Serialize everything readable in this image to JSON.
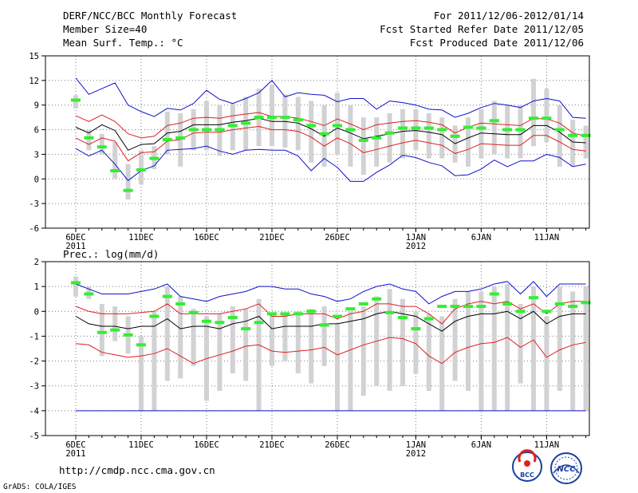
{
  "header": {
    "title": "DERF/NCC/BCC Monthly Forecast",
    "member_size": "Member Size=40",
    "variable": "Mean Surf. Temp.: °C",
    "forecast_range": "For 2011/12/06-2012/01/14",
    "fcst_started": "Fcst Started Refer Date 2011/12/05",
    "fcst_produced": "Fcst Produced Date 2011/12/06"
  },
  "precip_label": "Prec.: log(mm/d)",
  "footer": {
    "url": "http://cmdp.ncc.cma.gov.cn",
    "grads": "GrADS: COLA/IGES",
    "logo_bcc": "BCC",
    "logo_ncc": "NCC"
  },
  "colors": {
    "grid": "#7a7a7a",
    "bar": "#d2d2d4",
    "green": "#33ee33",
    "mean": "#000000",
    "std": "#dd2020",
    "extreme": "#1010cc"
  },
  "chart_data": [
    {
      "type": "line",
      "title": "Mean Surf. Temp.: °C",
      "ylim": [
        -6,
        15
      ],
      "yticks": [
        "15",
        "12",
        "9",
        "6",
        "3",
        "0",
        "-3",
        "-6"
      ],
      "ytick_values": [
        15,
        12,
        9,
        6,
        3,
        0,
        -3,
        -6
      ],
      "x_days": 40,
      "xticks": [
        {
          "day": 0,
          "label": "6DEC",
          "sub": "2011"
        },
        {
          "day": 5,
          "label": "11DEC",
          "sub": ""
        },
        {
          "day": 10,
          "label": "16DEC",
          "sub": ""
        },
        {
          "day": 15,
          "label": "21DEC",
          "sub": ""
        },
        {
          "day": 20,
          "label": "26DEC",
          "sub": ""
        },
        {
          "day": 26,
          "label": "1JAN",
          "sub": "2012"
        },
        {
          "day": 31,
          "label": "6JAN",
          "sub": ""
        },
        {
          "day": 36,
          "label": "11JAN",
          "sub": ""
        }
      ],
      "series": [
        {
          "name": "ensemble max",
          "color": "extreme",
          "values": [
            12.3,
            10.3,
            11.0,
            11.7,
            9.0,
            8.2,
            7.6,
            8.6,
            8.4,
            9.2,
            10.8,
            9.7,
            9.2,
            9.8,
            10.5,
            12.0,
            10.0,
            10.5,
            10.3,
            10.2,
            9.4,
            9.8,
            9.8,
            8.5,
            9.5,
            9.3,
            9.0,
            8.5,
            8.4,
            7.5,
            8.0,
            8.7,
            9.2,
            9.0,
            8.7,
            9.5,
            9.8,
            9.5,
            7.5,
            7.4
          ]
        },
        {
          "name": "mean + std",
          "color": "std",
          "values": [
            7.7,
            7.0,
            7.8,
            7.0,
            5.5,
            5.0,
            5.2,
            6.5,
            6.8,
            7.4,
            7.5,
            7.4,
            7.7,
            7.9,
            8.1,
            7.6,
            7.6,
            7.4,
            7.0,
            6.5,
            7.3,
            6.7,
            6.0,
            6.6,
            6.8,
            7.0,
            7.1,
            6.9,
            6.6,
            5.6,
            6.3,
            6.8,
            6.7,
            6.6,
            6.5,
            7.4,
            7.3,
            6.8,
            5.6,
            5.2
          ]
        },
        {
          "name": "ensemble mean",
          "color": "mean",
          "values": [
            6.3,
            5.6,
            6.6,
            5.9,
            3.5,
            4.2,
            4.3,
            5.6,
            5.8,
            6.6,
            6.6,
            6.6,
            6.9,
            7.1,
            7.4,
            7.0,
            7.0,
            6.8,
            6.1,
            5.2,
            6.2,
            5.6,
            4.9,
            5.2,
            5.5,
            5.8,
            5.9,
            5.7,
            5.4,
            4.3,
            5.0,
            5.6,
            5.5,
            5.4,
            5.4,
            6.5,
            6.5,
            5.7,
            4.5,
            4.4
          ]
        },
        {
          "name": "mean - std",
          "color": "std",
          "values": [
            5.0,
            4.2,
            5.0,
            4.6,
            2.2,
            3.2,
            3.3,
            4.6,
            4.8,
            5.6,
            5.7,
            5.7,
            6.0,
            6.2,
            6.4,
            6.0,
            6.0,
            5.8,
            5.1,
            4.0,
            5.0,
            4.3,
            3.2,
            3.6,
            4.0,
            4.4,
            4.7,
            4.4,
            4.1,
            3.1,
            3.6,
            4.3,
            4.2,
            4.1,
            4.1,
            5.3,
            5.3,
            4.5,
            3.6,
            3.4
          ]
        },
        {
          "name": "ensemble min",
          "color": "extreme",
          "values": [
            3.7,
            2.8,
            3.5,
            1.8,
            -0.2,
            1.0,
            1.6,
            3.5,
            3.6,
            3.7,
            4.0,
            3.4,
            3.0,
            3.5,
            3.6,
            3.5,
            3.5,
            2.8,
            1.0,
            2.5,
            1.4,
            -0.3,
            -0.3,
            0.8,
            1.7,
            2.9,
            2.6,
            2.0,
            1.6,
            0.4,
            0.5,
            1.2,
            2.3,
            1.5,
            2.2,
            2.2,
            3.0,
            2.6,
            1.5,
            1.8
          ]
        }
      ],
      "boxes": [
        [
          8.6,
          10.2
        ],
        [
          3.5,
          6.0
        ],
        [
          3.0,
          5.5
        ],
        [
          0.0,
          4.5
        ],
        [
          -2.5,
          1.8
        ],
        [
          -0.7,
          3.5
        ],
        [
          1.2,
          4.0
        ],
        [
          3.0,
          8.2
        ],
        [
          1.5,
          8.0
        ],
        [
          3.5,
          8.5
        ],
        [
          3.5,
          9.5
        ],
        [
          2.8,
          9.0
        ],
        [
          3.5,
          9.2
        ],
        [
          3.5,
          10.0
        ],
        [
          4.0,
          11.0
        ],
        [
          4.0,
          11.5
        ],
        [
          3.8,
          10.3
        ],
        [
          3.5,
          10.0
        ],
        [
          2.0,
          9.5
        ],
        [
          1.5,
          9.0
        ],
        [
          3.0,
          10.5
        ],
        [
          1.5,
          9.0
        ],
        [
          0.5,
          7.5
        ],
        [
          1.5,
          7.5
        ],
        [
          2.0,
          8.0
        ],
        [
          2.5,
          8.5
        ],
        [
          3.5,
          8.5
        ],
        [
          2.5,
          8.0
        ],
        [
          2.5,
          7.5
        ],
        [
          2.0,
          6.5
        ],
        [
          1.5,
          7.5
        ],
        [
          2.5,
          8.5
        ],
        [
          3.0,
          9.5
        ],
        [
          2.5,
          9.0
        ],
        [
          2.5,
          9.0
        ],
        [
          4.0,
          12.2
        ],
        [
          4.5,
          11.0
        ],
        [
          1.5,
          9.0
        ],
        [
          1.5,
          7.2
        ],
        [
          2.5,
          6.5
        ]
      ],
      "obs": [
        9.6,
        5.0,
        3.9,
        1.0,
        -1.4,
        1.1,
        2.5,
        4.8,
        5.0,
        6.0,
        6.0,
        6.0,
        6.5,
        6.8,
        7.5,
        7.5,
        7.5,
        7.2,
        6.5,
        5.5,
        6.5,
        6.0,
        4.7,
        5.0,
        5.6,
        6.2,
        6.2,
        6.2,
        6.0,
        5.2,
        6.3,
        6.2,
        7.1,
        6.0,
        6.0,
        7.4,
        7.4,
        6.0,
        5.3,
        5.3
      ]
    },
    {
      "type": "line",
      "title": "Prec.: log(mm/d)",
      "ylim": [
        -5,
        2
      ],
      "yticks": [
        "2",
        "1",
        "0",
        "-1",
        "-2",
        "-3",
        "-4",
        "-5"
      ],
      "ytick_values": [
        2,
        1,
        0,
        -1,
        -2,
        -3,
        -4,
        -5
      ],
      "x_days": 40,
      "xticks": [
        {
          "day": 0,
          "label": "6DEC",
          "sub": "2011"
        },
        {
          "day": 5,
          "label": "11DEC",
          "sub": ""
        },
        {
          "day": 10,
          "label": "16DEC",
          "sub": ""
        },
        {
          "day": 15,
          "label": "21DEC",
          "sub": ""
        },
        {
          "day": 20,
          "label": "26DEC",
          "sub": ""
        },
        {
          "day": 26,
          "label": "1JAN",
          "sub": "2012"
        },
        {
          "day": 31,
          "label": "6JAN",
          "sub": ""
        },
        {
          "day": 36,
          "label": "11JAN",
          "sub": ""
        }
      ],
      "series": [
        {
          "name": "ensemble max",
          "color": "extreme",
          "values": [
            1.1,
            0.9,
            0.7,
            0.7,
            0.7,
            0.8,
            0.9,
            1.1,
            0.6,
            0.5,
            0.4,
            0.6,
            0.7,
            0.8,
            1.0,
            1.0,
            0.9,
            0.9,
            0.7,
            0.6,
            0.4,
            0.5,
            0.8,
            1.0,
            1.1,
            0.9,
            0.8,
            0.3,
            0.6,
            0.8,
            0.8,
            0.9,
            1.1,
            1.2,
            0.7,
            1.2,
            0.6,
            1.1,
            1.1,
            1.1
          ]
        },
        {
          "name": "mean + std",
          "color": "std",
          "values": [
            0.2,
            0.0,
            -0.1,
            -0.1,
            -0.1,
            -0.05,
            0.0,
            0.3,
            -0.1,
            -0.1,
            -0.1,
            -0.1,
            0.0,
            0.1,
            0.3,
            -0.2,
            -0.2,
            -0.1,
            -0.1,
            -0.1,
            -0.3,
            -0.1,
            0.0,
            0.3,
            0.3,
            0.2,
            0.2,
            -0.1,
            -0.5,
            0.1,
            0.3,
            0.4,
            0.3,
            0.4,
            0.1,
            0.3,
            -0.1,
            0.3,
            0.4,
            0.4
          ]
        },
        {
          "name": "ensemble mean",
          "color": "mean",
          "values": [
            -0.2,
            -0.5,
            -0.6,
            -0.6,
            -0.7,
            -0.6,
            -0.6,
            -0.3,
            -0.7,
            -0.6,
            -0.6,
            -0.7,
            -0.5,
            -0.4,
            -0.2,
            -0.7,
            -0.6,
            -0.6,
            -0.6,
            -0.5,
            -0.5,
            -0.4,
            -0.3,
            -0.1,
            0.0,
            -0.1,
            -0.2,
            -0.5,
            -0.8,
            -0.4,
            -0.2,
            -0.1,
            -0.1,
            0.0,
            -0.3,
            0.0,
            -0.5,
            -0.2,
            -0.1,
            -0.1
          ]
        },
        {
          "name": "mean - std",
          "color": "std",
          "values": [
            -1.3,
            -1.35,
            -1.65,
            -1.75,
            -1.85,
            -1.8,
            -1.7,
            -1.5,
            -1.8,
            -2.1,
            -1.9,
            -1.75,
            -1.6,
            -1.4,
            -1.35,
            -1.6,
            -1.65,
            -1.6,
            -1.55,
            -1.45,
            -1.75,
            -1.55,
            -1.35,
            -1.2,
            -1.05,
            -1.1,
            -1.3,
            -1.8,
            -2.1,
            -1.65,
            -1.45,
            -1.3,
            -1.25,
            -1.05,
            -1.45,
            -1.15,
            -1.85,
            -1.55,
            -1.35,
            -1.25
          ]
        },
        {
          "name": "ensemble min",
          "color": "extreme",
          "values": [
            -4,
            -4,
            -4,
            -4,
            -4,
            -4,
            -4,
            -4,
            -4,
            -4,
            -4,
            -4,
            -4,
            -4,
            -4,
            -4,
            -4,
            -4,
            -4,
            -4,
            -4,
            -4,
            -4,
            -4,
            -4,
            -4,
            -4,
            -4,
            -4,
            -4,
            -4,
            -4,
            -4,
            -4,
            -4,
            -4,
            -4,
            -4,
            -4,
            -4
          ]
        }
      ],
      "boxes": [
        [
          0.6,
          1.4
        ],
        [
          0.5,
          1.0
        ],
        [
          -1.8,
          0.3
        ],
        [
          -1.2,
          0.2
        ],
        [
          -1.7,
          -0.2
        ],
        [
          -4,
          -1.0
        ],
        [
          -4,
          0.0
        ],
        [
          -2.8,
          1.0
        ],
        [
          -2.7,
          0.6
        ],
        [
          -2.2,
          0.1
        ],
        [
          -3.6,
          -0.2
        ],
        [
          -3.2,
          -0.1
        ],
        [
          -2.5,
          0.2
        ],
        [
          -2.8,
          0.1
        ],
        [
          -4,
          0.5
        ],
        [
          -2.2,
          -0.1
        ],
        [
          -2.0,
          -0.1
        ],
        [
          -2.5,
          0.0
        ],
        [
          -2.9,
          0.1
        ],
        [
          -2.2,
          0.2
        ],
        [
          -4,
          -0.5
        ],
        [
          -4,
          0.0
        ],
        [
          -3.4,
          0.2
        ],
        [
          -3.0,
          0.6
        ],
        [
          -3.2,
          0.9
        ],
        [
          -3.0,
          0.5
        ],
        [
          -2.5,
          0.0
        ],
        [
          -3.2,
          -0.1
        ],
        [
          -4,
          -0.2
        ],
        [
          -2.8,
          0.5
        ],
        [
          -3.2,
          0.8
        ],
        [
          -4,
          0.8
        ],
        [
          -4,
          1.0
        ],
        [
          -4,
          1.1
        ],
        [
          -2.9,
          0.3
        ],
        [
          -4,
          1.0
        ],
        [
          -4,
          -0.2
        ],
        [
          -3.2,
          1.0
        ],
        [
          -4,
          0.8
        ],
        [
          -4,
          1.0
        ]
      ],
      "obs": [
        1.15,
        0.7,
        -0.85,
        -0.75,
        -0.95,
        -1.35,
        -0.2,
        0.6,
        0.3,
        -0.05,
        -0.4,
        -0.45,
        -0.25,
        -0.7,
        -0.45,
        -0.1,
        -0.1,
        -0.1,
        0.0,
        -0.55,
        -0.2,
        0.1,
        0.3,
        0.5,
        -0.05,
        -0.25,
        -0.7,
        -0.3,
        0.2,
        0.2,
        0.2,
        0.2,
        0.7,
        0.3,
        0.0,
        0.55,
        0.0,
        0.3,
        0.2,
        0.35
      ]
    }
  ]
}
